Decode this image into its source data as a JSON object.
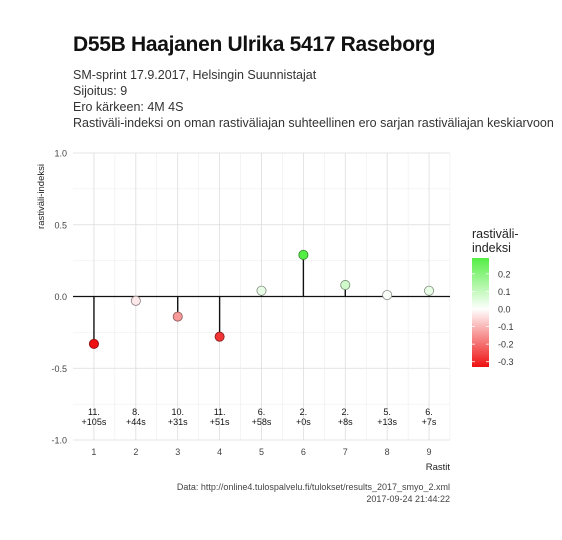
{
  "title": "D55B Haajanen Ulrika 5417 Raseborg",
  "subtitle_lines": [
    "SM-sprint 17.9.2017, Helsingin Suunnistajat",
    "Sijoitus: 9",
    "Ero kärkeen: 4M 4S",
    "Rastiväli-indeksi on oman rastiväliajan suhteellinen ero sarjan rastiväliajan keskiarvoon"
  ],
  "caption": {
    "source": "Data: http://online4.tulospalvelu.fi/tulokset/results_2017_smyo_2.xml",
    "timestamp": "2017-09-24 21:44:22"
  },
  "chart_data": {
    "type": "scatter",
    "xlabel": "Rastit",
    "ylabel": "rastiväli-indeksi",
    "xlim": [
      0.5,
      9.5
    ],
    "ylim": [
      -1.0,
      1.0
    ],
    "x_ticks": [
      1,
      2,
      3,
      4,
      5,
      6,
      7,
      8,
      9
    ],
    "y_ticks": [
      -1.0,
      -0.5,
      0.0,
      0.5,
      1.0
    ],
    "y_tick_labels": [
      "-1.0",
      "-0.5",
      "0.0",
      "0.5",
      "1.0"
    ],
    "grid": true,
    "reference_line": 0,
    "points": [
      {
        "x": 1,
        "y": -0.33,
        "rank": "11.",
        "time": "+105s"
      },
      {
        "x": 2,
        "y": -0.03,
        "rank": "8.",
        "time": "+44s"
      },
      {
        "x": 3,
        "y": -0.14,
        "rank": "10.",
        "time": "+31s"
      },
      {
        "x": 4,
        "y": -0.28,
        "rank": "11.",
        "time": "+51s"
      },
      {
        "x": 5,
        "y": 0.04,
        "rank": "6.",
        "time": "+58s"
      },
      {
        "x": 6,
        "y": 0.29,
        "rank": "2.",
        "time": "+0s"
      },
      {
        "x": 7,
        "y": 0.08,
        "rank": "2.",
        "time": "+8s"
      },
      {
        "x": 8,
        "y": 0.01,
        "rank": "5.",
        "time": "+13s"
      },
      {
        "x": 9,
        "y": 0.04,
        "rank": "6.",
        "time": "+7s"
      }
    ],
    "legend": {
      "title_lines": [
        "rastiväli-",
        "indeksi"
      ],
      "position": "right",
      "ticks": [
        0.2,
        0.1,
        0.0,
        -0.1,
        -0.2,
        -0.3
      ],
      "tick_labels": [
        "0.2",
        "0.1",
        "0.0",
        "-0.1",
        "-0.2",
        "-0.3"
      ],
      "range": [
        -0.33,
        0.29
      ],
      "colors": {
        "low": "#ee1111",
        "mid": "#ffffff",
        "high": "#55ee44"
      }
    }
  }
}
